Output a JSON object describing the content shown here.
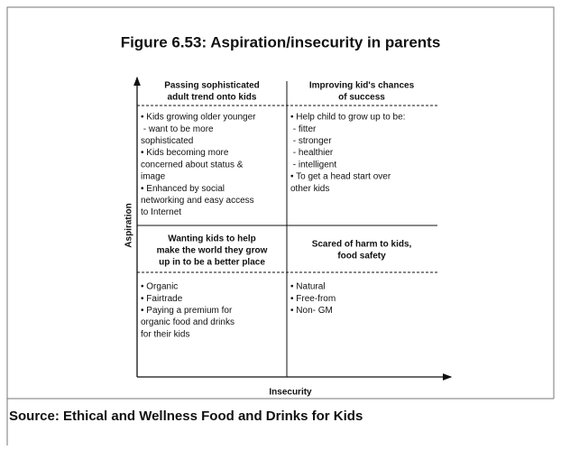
{
  "title": "Figure 6.53: Aspiration/insecurity in parents",
  "quadrants": [
    {
      "heading": [
        "Passing sophisticated",
        "adult trend onto kids"
      ],
      "body": [
        "• Kids growing older younger",
        " - want to be more",
        "sophisticated",
        "• Kids becoming more",
        "concerned about status &",
        "image",
        "• Enhanced by social",
        "networking and easy access",
        "to Internet"
      ]
    },
    {
      "heading": [
        "Improving kid's chances",
        "of success"
      ],
      "body": [
        "• Help child to grow up to be:",
        " - fitter",
        " - stronger",
        " - healthier",
        " - intelligent",
        "• To get a head start over",
        "other kids"
      ]
    },
    {
      "heading": [
        "Wanting kids to help",
        "make the world they grow",
        "up in to be a better place"
      ],
      "body": [
        "• Organic",
        "• Fairtrade",
        "• Paying a premium for",
        "organic food and drinks",
        "for their kids"
      ]
    },
    {
      "heading": [
        "Scared of harm to kids,",
        "food safety"
      ],
      "body": [
        "• Natural",
        "• Free-from",
        "• Non- GM"
      ]
    }
  ],
  "y_axis_label": "Aspiration",
  "x_axis_label": "Insecurity",
  "source": "Source: Ethical and Wellness Food and Drinks for Kids"
}
